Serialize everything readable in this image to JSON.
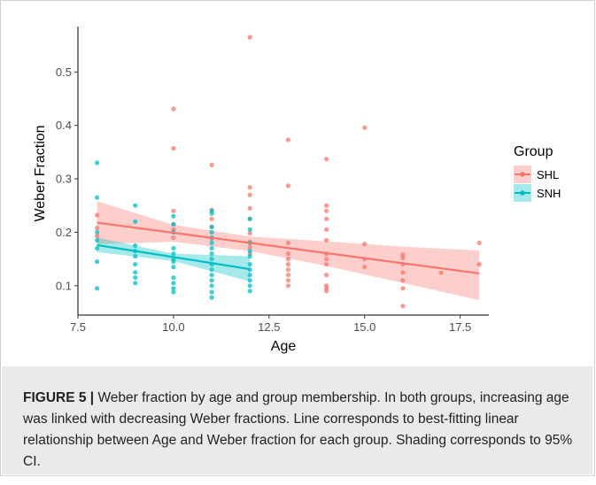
{
  "chart_data": {
    "type": "scatter",
    "xlabel": "Age",
    "ylabel": "Weber Fraction",
    "xlim": [
      7.5,
      18.25
    ],
    "ylim": [
      0.045,
      0.585
    ],
    "x_ticks": [
      "7.5",
      "10.0",
      "12.5",
      "15.0",
      "17.5"
    ],
    "x_tick_values": [
      7.5,
      10,
      12.5,
      15,
      17.5
    ],
    "y_ticks": [
      "0.1",
      "0.2",
      "0.3",
      "0.4",
      "0.5"
    ],
    "y_tick_values": [
      0.1,
      0.2,
      0.3,
      0.4,
      0.5
    ],
    "grid": false,
    "legend": {
      "title": "Group",
      "placement": "right"
    },
    "series": [
      {
        "name": "SHL",
        "color": "#f8766d",
        "ribbon_color": "#f8766d",
        "fit": {
          "x": [
            8,
            18
          ],
          "y": [
            0.218,
            0.123
          ]
        },
        "ci": {
          "x": [
            8,
            10,
            12,
            14,
            16,
            18
          ],
          "lower": [
            0.178,
            0.182,
            0.165,
            0.137,
            0.105,
            0.073
          ],
          "upper": [
            0.258,
            0.214,
            0.192,
            0.183,
            0.173,
            0.166
          ]
        },
        "points": [
          [
            8,
            0.232
          ],
          [
            8,
            0.208
          ],
          [
            8,
            0.193
          ],
          [
            10,
            0.431
          ],
          [
            10,
            0.357
          ],
          [
            10,
            0.24
          ],
          [
            10,
            0.215
          ],
          [
            10,
            0.205
          ],
          [
            10,
            0.19
          ],
          [
            11,
            0.326
          ],
          [
            11,
            0.242
          ],
          [
            11,
            0.225
          ],
          [
            11,
            0.21
          ],
          [
            11,
            0.188
          ],
          [
            12,
            0.565
          ],
          [
            12,
            0.284
          ],
          [
            12,
            0.27
          ],
          [
            12,
            0.245
          ],
          [
            12,
            0.225
          ],
          [
            12,
            0.198
          ],
          [
            12,
            0.182
          ],
          [
            12,
            0.172
          ],
          [
            12,
            0.16
          ],
          [
            13,
            0.373
          ],
          [
            13,
            0.287
          ],
          [
            13,
            0.18
          ],
          [
            13,
            0.16
          ],
          [
            13,
            0.15
          ],
          [
            13,
            0.14
          ],
          [
            13,
            0.13
          ],
          [
            13,
            0.12
          ],
          [
            13,
            0.11
          ],
          [
            13,
            0.1
          ],
          [
            14,
            0.337
          ],
          [
            14,
            0.25
          ],
          [
            14,
            0.24
          ],
          [
            14,
            0.225
          ],
          [
            14,
            0.205
          ],
          [
            14,
            0.185
          ],
          [
            14,
            0.16
          ],
          [
            14,
            0.15
          ],
          [
            14,
            0.14
          ],
          [
            14,
            0.12
          ],
          [
            14,
            0.1
          ],
          [
            14,
            0.095
          ],
          [
            14,
            0.09
          ],
          [
            15,
            0.396
          ],
          [
            15,
            0.178
          ],
          [
            15,
            0.15
          ],
          [
            15,
            0.135
          ],
          [
            16,
            0.158
          ],
          [
            16,
            0.152
          ],
          [
            16,
            0.14
          ],
          [
            16,
            0.125
          ],
          [
            16,
            0.11
          ],
          [
            16,
            0.095
          ],
          [
            16,
            0.062
          ],
          [
            17,
            0.124
          ],
          [
            18,
            0.18
          ],
          [
            18,
            0.14
          ]
        ]
      },
      {
        "name": "SNH",
        "color": "#00bfc4",
        "ribbon_color": "#00bfc4",
        "fit": {
          "x": [
            8,
            12
          ],
          "y": [
            0.176,
            0.131
          ]
        },
        "ci": {
          "x": [
            8,
            10,
            12
          ],
          "lower": [
            0.163,
            0.146,
            0.108
          ],
          "upper": [
            0.19,
            0.16,
            0.155
          ]
        },
        "points": [
          [
            8,
            0.33
          ],
          [
            8,
            0.265
          ],
          [
            8,
            0.2
          ],
          [
            8,
            0.185
          ],
          [
            8,
            0.17
          ],
          [
            8,
            0.145
          ],
          [
            8,
            0.095
          ],
          [
            9,
            0.25
          ],
          [
            9,
            0.22
          ],
          [
            9,
            0.175
          ],
          [
            9,
            0.165
          ],
          [
            9,
            0.155
          ],
          [
            9,
            0.14
          ],
          [
            9,
            0.125
          ],
          [
            9,
            0.115
          ],
          [
            9,
            0.105
          ],
          [
            10,
            0.23
          ],
          [
            10,
            0.215
          ],
          [
            10,
            0.2
          ],
          [
            10,
            0.17
          ],
          [
            10,
            0.16
          ],
          [
            10,
            0.15
          ],
          [
            10,
            0.145
          ],
          [
            10,
            0.135
          ],
          [
            10,
            0.115
          ],
          [
            10,
            0.105
          ],
          [
            10,
            0.095
          ],
          [
            10,
            0.088
          ],
          [
            11,
            0.24
          ],
          [
            11,
            0.235
          ],
          [
            11,
            0.21
          ],
          [
            11,
            0.2
          ],
          [
            11,
            0.19
          ],
          [
            11,
            0.18
          ],
          [
            11,
            0.17
          ],
          [
            11,
            0.16
          ],
          [
            11,
            0.15
          ],
          [
            11,
            0.14
          ],
          [
            11,
            0.13
          ],
          [
            11,
            0.12
          ],
          [
            11,
            0.11
          ],
          [
            11,
            0.1
          ],
          [
            11,
            0.088
          ],
          [
            11,
            0.078
          ],
          [
            12,
            0.225
          ],
          [
            12,
            0.205
          ],
          [
            12,
            0.18
          ],
          [
            12,
            0.165
          ],
          [
            12,
            0.155
          ],
          [
            12,
            0.14
          ],
          [
            12,
            0.13
          ],
          [
            12,
            0.12
          ],
          [
            12,
            0.11
          ],
          [
            12,
            0.1
          ],
          [
            12,
            0.09
          ]
        ]
      }
    ]
  },
  "caption": {
    "label": "FIGURE 5 |",
    "text": " Weber fraction by age and group membership. In both groups, increasing age was linked with decreasing Weber fractions. Line corresponds to best-fitting linear relationship between Age and Weber fraction for each group. Shading corresponds to 95% CI."
  }
}
